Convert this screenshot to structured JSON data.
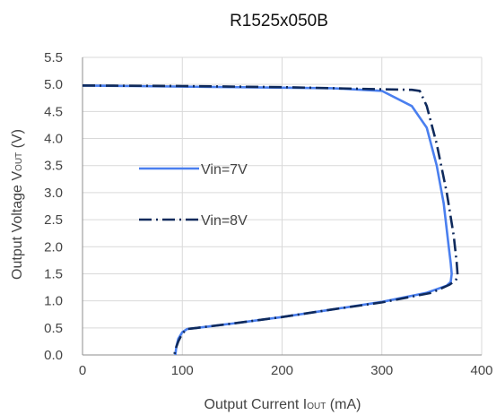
{
  "chart_data": {
    "type": "line",
    "title": "R1525x050B",
    "xlabel": {
      "main": "Output  Current I",
      "sub": "OUT",
      "unit": " (mA)"
    },
    "ylabel": {
      "main": "Output Voltage V",
      "sub": "OUT",
      "unit": " (V)"
    },
    "xlim": [
      0,
      400
    ],
    "ylim": [
      0,
      5.5
    ],
    "xticks": [
      0,
      100,
      200,
      300,
      400
    ],
    "yticks": [
      0.0,
      0.5,
      1.0,
      1.5,
      2.0,
      2.5,
      3.0,
      3.5,
      4.0,
      4.5,
      5.0,
      5.5
    ],
    "grid": true,
    "legend_position": "center-left",
    "series": [
      {
        "name": "Vin=7V",
        "color": "#4a7fef",
        "dash": "solid",
        "x": [
          0,
          50,
          150,
          250,
          300,
          330,
          345,
          355,
          362,
          367,
          369,
          370,
          369,
          365,
          345,
          300,
          250,
          200,
          150,
          115,
          105,
          100,
          96,
          94,
          93
        ],
        "y": [
          4.98,
          4.97,
          4.95,
          4.93,
          4.88,
          4.6,
          4.2,
          3.5,
          2.8,
          2.0,
          1.7,
          1.5,
          1.35,
          1.28,
          1.15,
          0.98,
          0.84,
          0.7,
          0.58,
          0.5,
          0.48,
          0.42,
          0.3,
          0.15,
          0.0
        ]
      },
      {
        "name": "Vin=8V",
        "color": "#0f2a5c",
        "dash": "dashdot",
        "x": [
          0,
          100,
          200,
          300,
          330,
          338,
          345,
          355,
          365,
          372,
          375,
          376,
          374,
          368,
          350,
          300,
          250,
          200,
          150,
          115,
          105,
          100,
          96,
          93,
          92
        ],
        "y": [
          4.98,
          4.97,
          4.95,
          4.91,
          4.9,
          4.88,
          4.6,
          3.9,
          3.0,
          2.2,
          1.7,
          1.45,
          1.38,
          1.3,
          1.15,
          0.97,
          0.84,
          0.7,
          0.58,
          0.5,
          0.48,
          0.4,
          0.25,
          0.1,
          0.0
        ]
      }
    ]
  }
}
